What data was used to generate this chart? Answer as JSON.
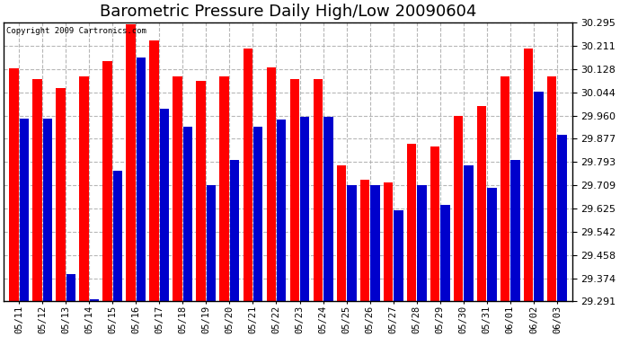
{
  "title": "Barometric Pressure Daily High/Low 20090604",
  "copyright": "Copyright 2009 Cartronics.com",
  "dates": [
    "05/11",
    "05/12",
    "05/13",
    "05/14",
    "05/15",
    "05/16",
    "05/17",
    "05/18",
    "05/19",
    "05/20",
    "05/21",
    "05/22",
    "05/23",
    "05/24",
    "05/25",
    "05/26",
    "05/27",
    "05/28",
    "05/29",
    "05/30",
    "05/31",
    "06/01",
    "06/02",
    "06/03"
  ],
  "highs": [
    30.13,
    30.09,
    30.06,
    30.1,
    30.155,
    30.29,
    30.23,
    30.1,
    30.085,
    30.1,
    30.2,
    30.135,
    30.09,
    30.09,
    29.78,
    29.73,
    29.72,
    29.86,
    29.85,
    29.96,
    29.995,
    30.1,
    30.2,
    30.1
  ],
  "lows": [
    29.95,
    29.95,
    29.39,
    29.3,
    29.76,
    30.17,
    29.985,
    29.92,
    29.71,
    29.8,
    29.92,
    29.945,
    29.955,
    29.955,
    29.71,
    29.71,
    29.62,
    29.71,
    29.64,
    29.78,
    29.7,
    29.8,
    30.045,
    29.89
  ],
  "high_color": "#ff0000",
  "low_color": "#0000cc",
  "background_color": "#ffffff",
  "grid_color": "#b0b0b0",
  "title_fontsize": 13,
  "ylim_min": 29.291,
  "ylim_max": 30.295,
  "yticks": [
    29.291,
    29.374,
    29.458,
    29.542,
    29.625,
    29.709,
    29.793,
    29.877,
    29.96,
    30.044,
    30.128,
    30.211,
    30.295
  ]
}
